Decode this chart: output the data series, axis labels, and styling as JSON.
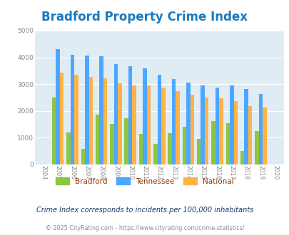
{
  "title": "Bradford Property Crime Index",
  "years": [
    2004,
    2005,
    2006,
    2007,
    2008,
    2009,
    2010,
    2011,
    2012,
    2013,
    2014,
    2015,
    2016,
    2017,
    2018,
    2019,
    2020
  ],
  "bradford": [
    null,
    2500,
    1200,
    580,
    1850,
    1520,
    1720,
    1130,
    760,
    1170,
    1410,
    950,
    1620,
    1530,
    510,
    1240,
    null
  ],
  "tennessee": [
    null,
    4300,
    4100,
    4080,
    4040,
    3760,
    3660,
    3600,
    3360,
    3180,
    3060,
    2940,
    2870,
    2940,
    2830,
    2630,
    null
  ],
  "national": [
    null,
    3440,
    3340,
    3260,
    3210,
    3040,
    2960,
    2940,
    2870,
    2730,
    2610,
    2490,
    2460,
    2370,
    2190,
    2130,
    null
  ],
  "bradford_color": "#8dc63f",
  "tennessee_color": "#4da6ff",
  "national_color": "#ffb347",
  "bg_color": "#e0ecf4",
  "ylim": [
    0,
    5000
  ],
  "title_fontsize": 12,
  "subtitle": "Crime Index corresponds to incidents per 100,000 inhabitants",
  "footer": "© 2025 CityRating.com - https://www.cityrating.com/crime-statistics/",
  "legend_labels": [
    "Bradford",
    "Tennessee",
    "National"
  ],
  "title_color": "#1a7abf",
  "legend_label_color": "#8b3a00",
  "subtitle_color": "#1a3a6a",
  "footer_color": "#8888aa"
}
